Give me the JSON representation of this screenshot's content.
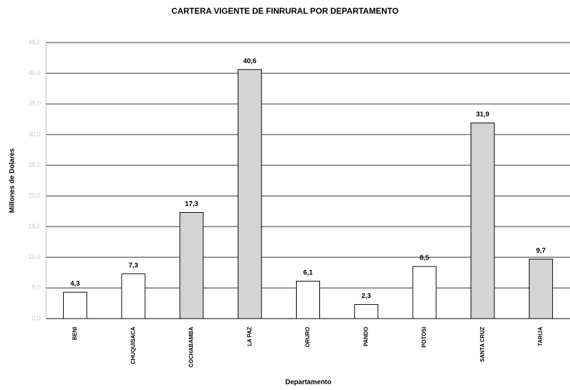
{
  "chart_data": {
    "type": "bar",
    "title": "CARTERA VIGENTE DE FINRURAL POR DEPARTAMENTO",
    "x_label": "Departamento",
    "y_label": "Millones de Dolares",
    "categories": [
      "BENI",
      "CHUQUISACA",
      "COCHABAMBA",
      "LA PAZ",
      "ORURO",
      "PANDO",
      "POTOSI",
      "SANTA CRUZ",
      "TARIJA"
    ],
    "values": [
      4.3,
      7.3,
      17.3,
      40.6,
      6.1,
      2.3,
      8.5,
      31.9,
      9.7
    ],
    "value_labels": [
      "4,3",
      "7,3",
      "17,3",
      "40,6",
      "6,1",
      "2,3",
      "8,5",
      "31,9",
      "9,7"
    ],
    "colors": [
      "#ffffff",
      "#ffffff",
      "#d4d4d4",
      "#d4d4d4",
      "#ffffff",
      "#ffffff",
      "#ffffff",
      "#d4d4d4",
      "#d4d4d4"
    ],
    "ylim": [
      0,
      45
    ],
    "yticks": [
      {
        "value": 0,
        "label": "0,0"
      },
      {
        "value": 5,
        "label": "5,0"
      },
      {
        "value": 10,
        "label": "10,0"
      },
      {
        "value": 15,
        "label": "15,0"
      },
      {
        "value": 20,
        "label": "20,0"
      },
      {
        "value": 25,
        "label": "25,0"
      },
      {
        "value": 30,
        "label": "30,0"
      },
      {
        "value": 35,
        "label": "35,0"
      },
      {
        "value": 40,
        "label": "40,0"
      },
      {
        "value": 45,
        "label": "45,0"
      }
    ],
    "grid": true
  }
}
